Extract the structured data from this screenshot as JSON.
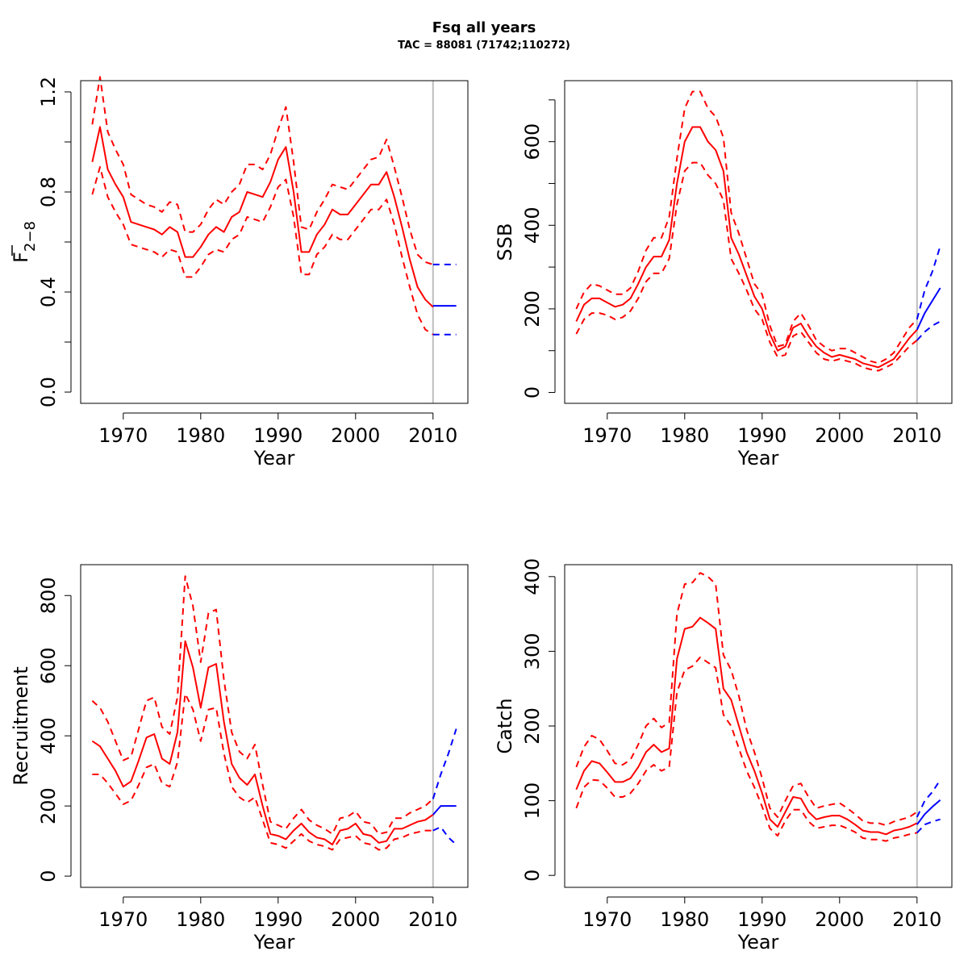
{
  "figure": {
    "title": "Fsq all years",
    "subtitle": "TAC = 88081 (71742;110272)",
    "colors": {
      "history": "#ff0000",
      "forecast": "#0000ff",
      "ref_line": "#bebebe",
      "axis": "#000000"
    }
  },
  "chart_data": [
    {
      "type": "line",
      "xlabel": "Year",
      "ylabel": "F2-8",
      "ylabel_main": "F",
      "ylabel_sub": "2−8",
      "xlim": [
        1964.5,
        2014.5
      ],
      "ylim": [
        -0.045,
        1.245
      ],
      "xticks": [
        1970,
        1980,
        1990,
        2000,
        2010
      ],
      "yticks": [
        0.0,
        0.2,
        0.4,
        0.6,
        0.8,
        1.0,
        1.2
      ],
      "ytick_labels": [
        "0.0",
        "",
        "0.4",
        "",
        "0.8",
        "",
        "1.2"
      ],
      "ref_x": 2010,
      "x": [
        1966,
        1967,
        1968,
        1969,
        1970,
        1971,
        1972,
        1973,
        1974,
        1975,
        1976,
        1977,
        1978,
        1979,
        1980,
        1981,
        1982,
        1983,
        1984,
        1985,
        1986,
        1987,
        1988,
        1989,
        1990,
        1991,
        1992,
        1993,
        1994,
        1995,
        1996,
        1997,
        1998,
        1999,
        2000,
        2001,
        2002,
        2003,
        2004,
        2005,
        2006,
        2007,
        2008,
        2009,
        2010
      ],
      "series": [
        {
          "role": "estimate",
          "style": "solid",
          "color": "#ff0000",
          "values": [
            0.92,
            1.06,
            0.89,
            0.83,
            0.78,
            0.68,
            0.67,
            0.66,
            0.65,
            0.63,
            0.66,
            0.64,
            0.54,
            0.54,
            0.58,
            0.63,
            0.66,
            0.64,
            0.7,
            0.72,
            0.8,
            0.79,
            0.78,
            0.84,
            0.93,
            0.98,
            0.8,
            0.56,
            0.56,
            0.63,
            0.67,
            0.73,
            0.71,
            0.71,
            0.75,
            0.79,
            0.83,
            0.83,
            0.88,
            0.78,
            0.66,
            0.53,
            0.42,
            0.37,
            0.34
          ]
        },
        {
          "role": "upper",
          "style": "dashed",
          "color": "#ff0000",
          "values": [
            1.07,
            1.26,
            1.04,
            0.97,
            0.91,
            0.79,
            0.77,
            0.75,
            0.74,
            0.72,
            0.76,
            0.75,
            0.64,
            0.64,
            0.67,
            0.73,
            0.77,
            0.75,
            0.8,
            0.83,
            0.91,
            0.91,
            0.89,
            0.95,
            1.05,
            1.14,
            0.92,
            0.66,
            0.65,
            0.72,
            0.77,
            0.83,
            0.82,
            0.81,
            0.85,
            0.89,
            0.93,
            0.94,
            1.01,
            0.9,
            0.78,
            0.65,
            0.55,
            0.52,
            0.51
          ]
        },
        {
          "role": "lower",
          "style": "dashed",
          "color": "#ff0000",
          "values": [
            0.79,
            0.9,
            0.78,
            0.72,
            0.67,
            0.59,
            0.58,
            0.57,
            0.56,
            0.54,
            0.57,
            0.56,
            0.46,
            0.46,
            0.5,
            0.55,
            0.57,
            0.56,
            0.61,
            0.63,
            0.7,
            0.69,
            0.68,
            0.74,
            0.82,
            0.85,
            0.7,
            0.47,
            0.47,
            0.55,
            0.58,
            0.63,
            0.61,
            0.61,
            0.65,
            0.69,
            0.73,
            0.73,
            0.77,
            0.67,
            0.54,
            0.42,
            0.31,
            0.25,
            0.23
          ]
        }
      ],
      "forecast_x": [
        2010,
        2011,
        2012,
        2013
      ],
      "forecast": [
        {
          "role": "estimate",
          "style": "solid",
          "color": "#0000ff",
          "values": [
            0.345,
            0.345,
            0.345,
            0.345
          ]
        },
        {
          "role": "upper",
          "style": "dashed",
          "color": "#0000ff",
          "values": [
            0.51,
            0.51,
            0.51,
            0.51
          ]
        },
        {
          "role": "lower",
          "style": "dashed",
          "color": "#0000ff",
          "values": [
            0.23,
            0.23,
            0.23,
            0.23
          ]
        }
      ]
    },
    {
      "type": "line",
      "xlabel": "Year",
      "ylabel": "SSB",
      "xlim": [
        1964.5,
        2014.5
      ],
      "ylim": [
        -26,
        746
      ],
      "xticks": [
        1970,
        1980,
        1990,
        2000,
        2010
      ],
      "yticks": [
        0,
        100,
        200,
        300,
        400,
        500,
        600,
        700
      ],
      "ytick_labels": [
        "0",
        "",
        "200",
        "",
        "400",
        "",
        "600",
        ""
      ],
      "ref_x": 2010,
      "x": [
        1966,
        1967,
        1968,
        1969,
        1970,
        1971,
        1972,
        1973,
        1974,
        1975,
        1976,
        1977,
        1978,
        1979,
        1980,
        1981,
        1982,
        1983,
        1984,
        1985,
        1986,
        1987,
        1988,
        1989,
        1990,
        1991,
        1992,
        1993,
        1994,
        1995,
        1996,
        1997,
        1998,
        1999,
        2000,
        2001,
        2002,
        2003,
        2004,
        2005,
        2006,
        2007,
        2008,
        2009,
        2010
      ],
      "series": [
        {
          "role": "estimate",
          "style": "solid",
          "color": "#ff0000",
          "values": [
            170,
            210,
            225,
            225,
            215,
            205,
            210,
            225,
            260,
            300,
            325,
            325,
            365,
            500,
            600,
            635,
            635,
            600,
            580,
            530,
            370,
            330,
            280,
            230,
            200,
            140,
            100,
            110,
            155,
            165,
            135,
            110,
            95,
            85,
            90,
            85,
            80,
            70,
            65,
            60,
            70,
            80,
            105,
            130,
            150
          ]
        },
        {
          "role": "upper",
          "style": "dashed",
          "color": "#ff0000",
          "values": [
            200,
            240,
            260,
            255,
            245,
            235,
            235,
            250,
            290,
            340,
            370,
            370,
            420,
            560,
            680,
            720,
            720,
            680,
            660,
            610,
            430,
            380,
            320,
            260,
            235,
            160,
            110,
            115,
            170,
            190,
            160,
            125,
            110,
            100,
            105,
            105,
            95,
            85,
            75,
            70,
            80,
            95,
            125,
            155,
            175
          ]
        },
        {
          "role": "lower",
          "style": "dashed",
          "color": "#ff0000",
          "values": [
            140,
            175,
            190,
            190,
            185,
            175,
            180,
            195,
            225,
            265,
            285,
            285,
            320,
            450,
            530,
            550,
            550,
            520,
            500,
            460,
            320,
            285,
            245,
            200,
            175,
            120,
            85,
            90,
            135,
            145,
            120,
            95,
            80,
            75,
            80,
            75,
            70,
            60,
            55,
            52,
            60,
            70,
            90,
            110,
            125
          ]
        }
      ],
      "forecast_x": [
        2010,
        2011,
        2012,
        2013
      ],
      "forecast": [
        {
          "role": "estimate",
          "style": "solid",
          "color": "#0000ff",
          "values": [
            150,
            190,
            220,
            250
          ]
        },
        {
          "role": "upper",
          "style": "dashed",
          "color": "#0000ff",
          "values": [
            175,
            245,
            290,
            350
          ]
        },
        {
          "role": "lower",
          "style": "dashed",
          "color": "#0000ff",
          "values": [
            125,
            145,
            160,
            170
          ]
        }
      ]
    },
    {
      "type": "line",
      "xlabel": "Year",
      "ylabel": "Recruitment",
      "xlim": [
        1964.5,
        2014.5
      ],
      "ylim": [
        -32,
        888
      ],
      "xticks": [
        1970,
        1980,
        1990,
        2000,
        2010
      ],
      "yticks": [
        0,
        200,
        400,
        600,
        800
      ],
      "ytick_labels": [
        "0",
        "200",
        "400",
        "600",
        "800"
      ],
      "ref_x": 2010,
      "x": [
        1966,
        1967,
        1968,
        1969,
        1970,
        1971,
        1972,
        1973,
        1974,
        1975,
        1976,
        1977,
        1978,
        1979,
        1980,
        1981,
        1982,
        1983,
        1984,
        1985,
        1986,
        1987,
        1988,
        1989,
        1990,
        1991,
        1992,
        1993,
        1994,
        1995,
        1996,
        1997,
        1998,
        1999,
        2000,
        2001,
        2002,
        2003,
        2004,
        2005,
        2006,
        2007,
        2008,
        2009,
        2010
      ],
      "series": [
        {
          "role": "estimate",
          "style": "solid",
          "color": "#ff0000",
          "values": [
            385,
            370,
            335,
            300,
            255,
            270,
            330,
            395,
            405,
            335,
            320,
            410,
            670,
            595,
            480,
            595,
            605,
            440,
            320,
            280,
            260,
            290,
            200,
            120,
            115,
            105,
            130,
            150,
            125,
            110,
            105,
            90,
            130,
            135,
            150,
            120,
            115,
            95,
            100,
            135,
            135,
            145,
            155,
            160,
            175
          ]
        },
        {
          "role": "upper",
          "style": "dashed",
          "color": "#ff0000",
          "values": [
            500,
            480,
            440,
            385,
            330,
            340,
            420,
            500,
            510,
            425,
            405,
            510,
            855,
            770,
            610,
            750,
            760,
            560,
            410,
            355,
            335,
            375,
            260,
            155,
            145,
            135,
            165,
            190,
            160,
            145,
            135,
            120,
            165,
            170,
            185,
            155,
            150,
            120,
            125,
            165,
            165,
            180,
            190,
            200,
            220
          ]
        },
        {
          "role": "lower",
          "style": "dashed",
          "color": "#ff0000",
          "values": [
            290,
            290,
            265,
            235,
            205,
            215,
            260,
            310,
            320,
            265,
            255,
            325,
            520,
            475,
            385,
            475,
            480,
            350,
            255,
            225,
            210,
            225,
            160,
            95,
            90,
            80,
            100,
            120,
            100,
            90,
            85,
            75,
            105,
            110,
            115,
            95,
            90,
            75,
            80,
            105,
            110,
            120,
            125,
            130,
            130
          ]
        }
      ],
      "forecast_x": [
        2010,
        2011,
        2012,
        2013
      ],
      "forecast": [
        {
          "role": "estimate",
          "style": "solid",
          "color": "#0000ff",
          "values": [
            175,
            200,
            200,
            200
          ]
        },
        {
          "role": "upper",
          "style": "dashed",
          "color": "#0000ff",
          "values": [
            220,
            290,
            350,
            420
          ]
        },
        {
          "role": "lower",
          "style": "dashed",
          "color": "#0000ff",
          "values": [
            130,
            140,
            110,
            90
          ]
        }
      ]
    },
    {
      "type": "line",
      "xlabel": "Year",
      "ylabel": "Catch",
      "xlim": [
        1964.5,
        2014.5
      ],
      "ylim": [
        -16,
        416
      ],
      "xticks": [
        1970,
        1980,
        1990,
        2000,
        2010
      ],
      "yticks": [
        0,
        100,
        200,
        300,
        400
      ],
      "ytick_labels": [
        "0",
        "100",
        "200",
        "300",
        "400"
      ],
      "ref_x": 2010,
      "x": [
        1966,
        1967,
        1968,
        1969,
        1970,
        1971,
        1972,
        1973,
        1974,
        1975,
        1976,
        1977,
        1978,
        1979,
        1980,
        1981,
        1982,
        1983,
        1984,
        1985,
        1986,
        1987,
        1988,
        1989,
        1990,
        1991,
        1992,
        1993,
        1994,
        1995,
        1996,
        1997,
        1998,
        1999,
        2000,
        2001,
        2002,
        2003,
        2004,
        2005,
        2006,
        2007,
        2008,
        2009,
        2010
      ],
      "series": [
        {
          "role": "estimate",
          "style": "solid",
          "color": "#ff0000",
          "values": [
            115,
            140,
            153,
            150,
            138,
            125,
            125,
            130,
            145,
            165,
            175,
            165,
            170,
            290,
            330,
            333,
            345,
            338,
            330,
            250,
            235,
            200,
            165,
            140,
            110,
            75,
            65,
            85,
            105,
            103,
            85,
            75,
            78,
            80,
            80,
            75,
            68,
            60,
            58,
            58,
            55,
            60,
            62,
            65,
            70
          ]
        },
        {
          "role": "upper",
          "style": "dashed",
          "color": "#ff0000",
          "values": [
            145,
            172,
            187,
            182,
            167,
            150,
            148,
            155,
            175,
            200,
            210,
            198,
            205,
            350,
            390,
            392,
            405,
            400,
            390,
            295,
            275,
            240,
            195,
            165,
            130,
            90,
            78,
            100,
            120,
            123,
            105,
            90,
            93,
            95,
            97,
            90,
            82,
            73,
            70,
            70,
            67,
            72,
            75,
            78,
            85
          ]
        },
        {
          "role": "lower",
          "style": "dashed",
          "color": "#ff0000",
          "values": [
            90,
            118,
            128,
            127,
            117,
            105,
            105,
            110,
            123,
            140,
            148,
            140,
            145,
            245,
            275,
            280,
            292,
            285,
            278,
            215,
            200,
            170,
            140,
            118,
            92,
            63,
            53,
            73,
            88,
            88,
            72,
            63,
            65,
            67,
            67,
            63,
            58,
            50,
            48,
            48,
            46,
            50,
            52,
            55,
            57
          ]
        }
      ],
      "forecast_x": [
        2010,
        2011,
        2012,
        2013
      ],
      "forecast": [
        {
          "role": "estimate",
          "style": "solid",
          "color": "#0000ff",
          "values": [
            68,
            82,
            92,
            101
          ]
        },
        {
          "role": "upper",
          "style": "dashed",
          "color": "#0000ff",
          "values": [
            78,
            100,
            112,
            128
          ]
        },
        {
          "role": "lower",
          "style": "dashed",
          "color": "#0000ff",
          "values": [
            57,
            68,
            72,
            75
          ]
        }
      ]
    }
  ]
}
